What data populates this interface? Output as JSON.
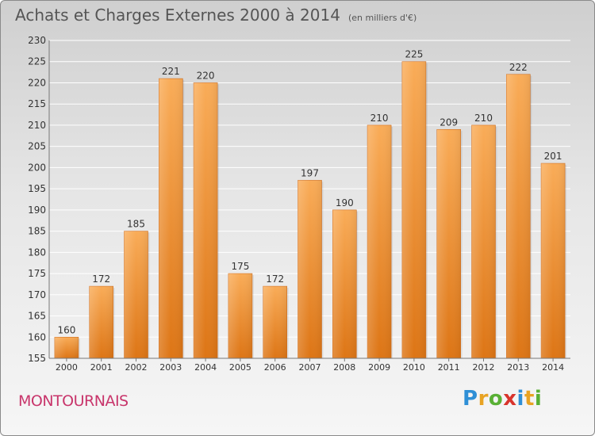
{
  "header": {
    "title": "Achats et Charges Externes 2000 à 2014",
    "subtitle": "(en milliers d'€)"
  },
  "footer": {
    "place": "MONTOURNAIS",
    "logo": "Proxiti"
  },
  "colors": {
    "bar_light": "#f7a64f",
    "bar_dark": "#e07b1c",
    "grid": "#ffffff",
    "place": "#c8356b"
  },
  "chart_data": {
    "type": "bar",
    "title": "Achats et Charges Externes 2000 à 2014",
    "subtitle": "(en milliers d'€)",
    "categories": [
      "2000",
      "2001",
      "2002",
      "2003",
      "2004",
      "2005",
      "2006",
      "2007",
      "2008",
      "2009",
      "2010",
      "2011",
      "2012",
      "2013",
      "2014"
    ],
    "values": [
      160,
      172,
      185,
      221,
      220,
      175,
      172,
      197,
      190,
      210,
      225,
      209,
      210,
      222,
      201
    ],
    "ylim": [
      155,
      230
    ],
    "yticks": [
      155,
      160,
      165,
      170,
      175,
      180,
      185,
      190,
      195,
      200,
      205,
      210,
      215,
      220,
      225,
      230
    ],
    "grid": true,
    "xlabel": "",
    "ylabel": ""
  }
}
